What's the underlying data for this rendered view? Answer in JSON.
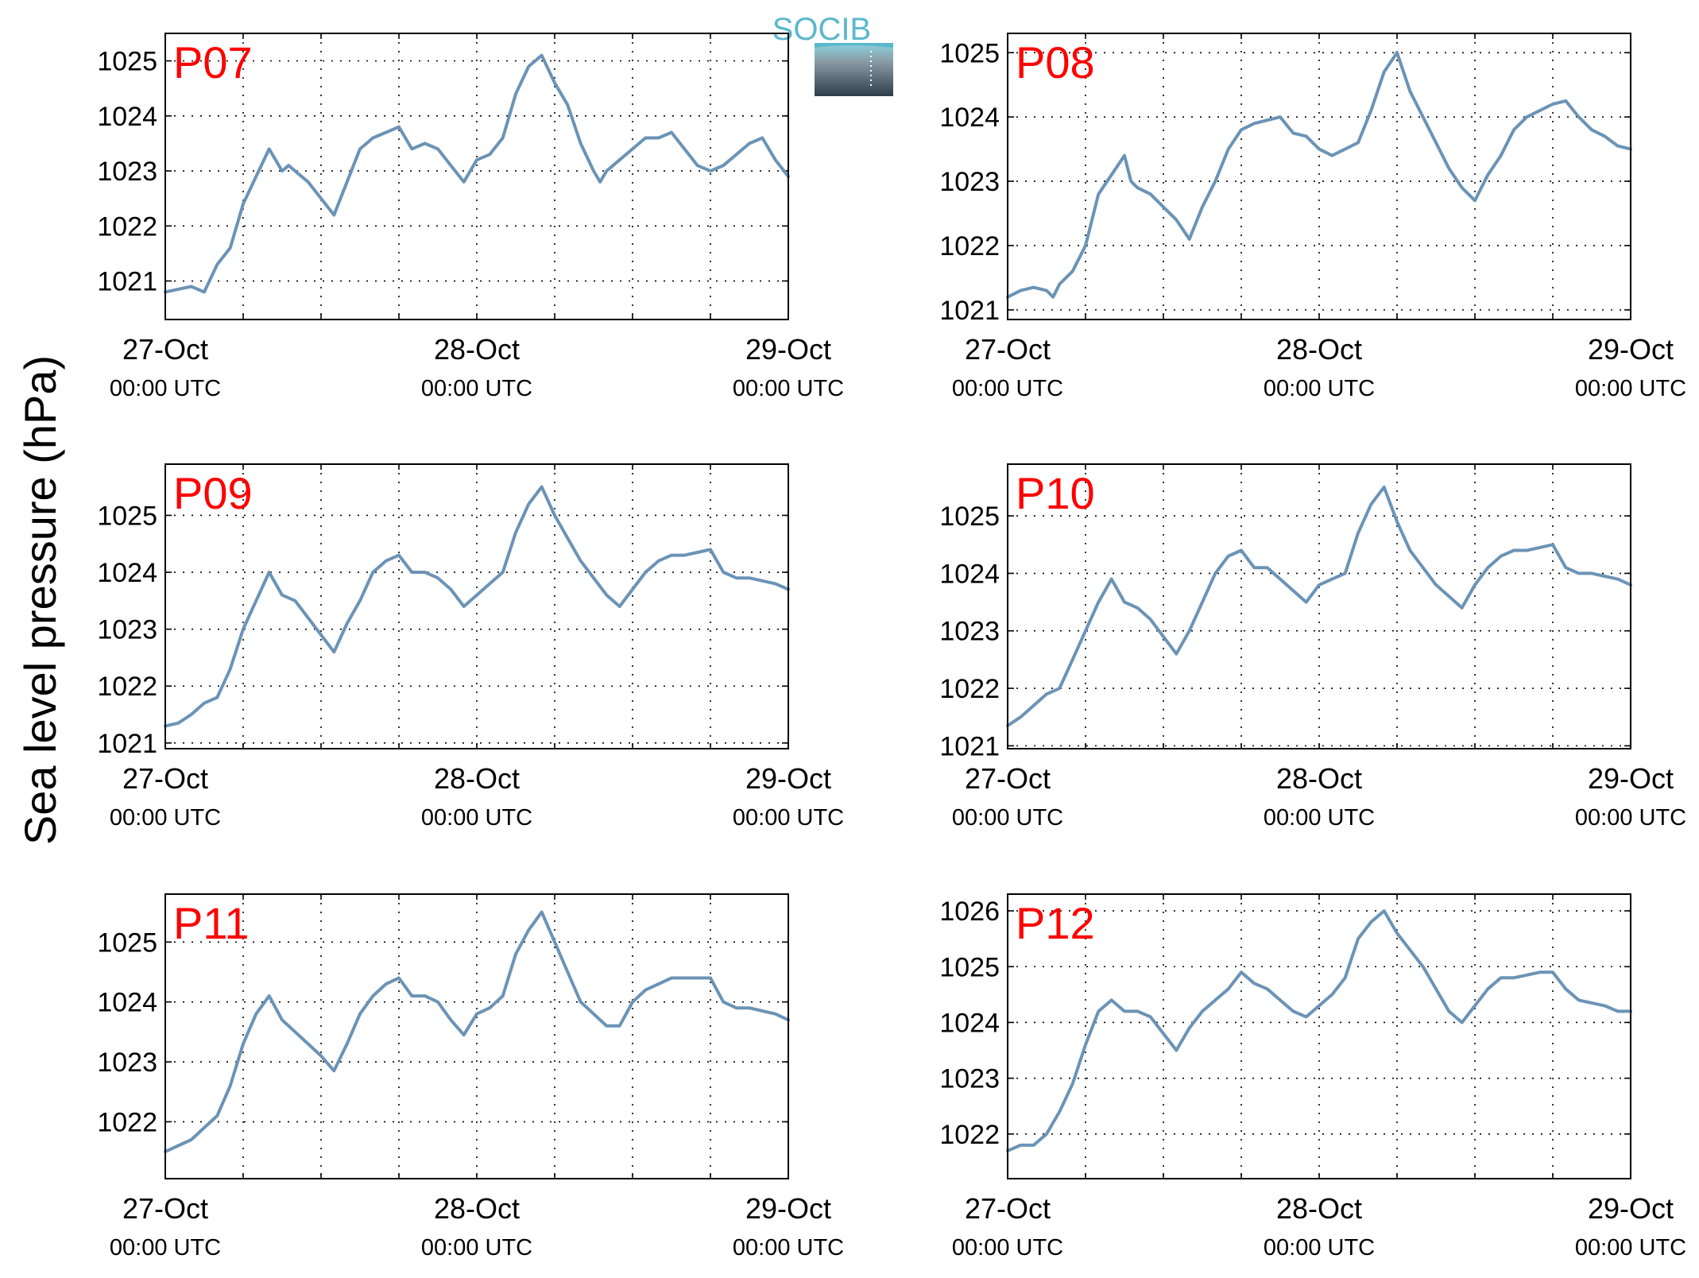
{
  "ylabel": "Sea level pressure (hPa)",
  "logo": {
    "text": "SOCIB"
  },
  "colors": {
    "series": "#6b93b6",
    "panel_label": "#ff0000",
    "logo_accent": "#5bb8cc",
    "logo_dark": "#2e3f4a"
  },
  "chart_data": [
    {
      "type": "line",
      "title": "P07",
      "xticks": [
        {
          "hour": 0,
          "date": "27-Oct",
          "time": "00:00 UTC"
        },
        {
          "hour": 24,
          "date": "28-Oct",
          "time": "00:00 UTC"
        },
        {
          "hour": 48,
          "date": "29-Oct",
          "time": "00:00 UTC"
        }
      ],
      "xlim": [
        0,
        48
      ],
      "ylim": [
        1020.3,
        1025.5
      ],
      "yticks": [
        1021,
        1022,
        1023,
        1024,
        1025
      ],
      "grid": true,
      "x": [
        0,
        1,
        2,
        3,
        4,
        5,
        6,
        7,
        8,
        9,
        9.5,
        10,
        11,
        12,
        13,
        14,
        15,
        15.5,
        16,
        17,
        18,
        19,
        20,
        21,
        22,
        23,
        24,
        25,
        26,
        27,
        28,
        29,
        30,
        31,
        32,
        33,
        33.5,
        34,
        35,
        36,
        37,
        38,
        39,
        40,
        41,
        42,
        43,
        44,
        45,
        46,
        47,
        48
      ],
      "y": [
        1020.8,
        1020.85,
        1020.9,
        1020.8,
        1021.3,
        1021.6,
        1022.4,
        1022.9,
        1023.4,
        1023.0,
        1023.1,
        1023.0,
        1022.8,
        1022.5,
        1022.2,
        1022.8,
        1023.4,
        1023.5,
        1023.6,
        1023.7,
        1023.8,
        1023.4,
        1023.5,
        1023.4,
        1023.1,
        1022.8,
        1023.2,
        1023.3,
        1023.6,
        1024.4,
        1024.9,
        1025.1,
        1024.6,
        1024.2,
        1023.5,
        1023.0,
        1022.8,
        1023.0,
        1023.2,
        1023.4,
        1023.6,
        1023.6,
        1023.7,
        1023.4,
        1023.1,
        1023.0,
        1023.1,
        1023.3,
        1023.5,
        1023.6,
        1023.2,
        1022.9
      ]
    },
    {
      "type": "line",
      "title": "P08",
      "xticks": [
        {
          "hour": 0,
          "date": "27-Oct",
          "time": "00:00 UTC"
        },
        {
          "hour": 24,
          "date": "28-Oct",
          "time": "00:00 UTC"
        },
        {
          "hour": 48,
          "date": "29-Oct",
          "time": "00:00 UTC"
        }
      ],
      "xlim": [
        0,
        48
      ],
      "ylim": [
        1020.85,
        1025.3
      ],
      "yticks": [
        1021,
        1022,
        1023,
        1024,
        1025
      ],
      "grid": true,
      "x": [
        0,
        1,
        2,
        3,
        3.5,
        4,
        5,
        6,
        7,
        8,
        9,
        9.5,
        10,
        11,
        12,
        13,
        14,
        15,
        16,
        17,
        18,
        19,
        21,
        22,
        23,
        24,
        25,
        26,
        27,
        28,
        29,
        30,
        31,
        32,
        33,
        34,
        35,
        36,
        37,
        38,
        39,
        40,
        41,
        42,
        43,
        44,
        45,
        46,
        47,
        48
      ],
      "y": [
        1021.2,
        1021.3,
        1021.35,
        1021.3,
        1021.2,
        1021.4,
        1021.6,
        1022.0,
        1022.8,
        1023.1,
        1023.4,
        1023.0,
        1022.9,
        1022.8,
        1022.6,
        1022.4,
        1022.1,
        1022.6,
        1023.0,
        1023.5,
        1023.8,
        1023.9,
        1024.0,
        1023.75,
        1023.7,
        1023.5,
        1023.4,
        1023.5,
        1023.6,
        1024.1,
        1024.7,
        1025.0,
        1024.4,
        1024.0,
        1023.6,
        1023.2,
        1022.9,
        1022.7,
        1023.1,
        1023.4,
        1023.8,
        1024.0,
        1024.1,
        1024.2,
        1024.25,
        1024.0,
        1023.8,
        1023.7,
        1023.55,
        1023.5
      ]
    },
    {
      "type": "line",
      "title": "P09",
      "xticks": [
        {
          "hour": 0,
          "date": "27-Oct",
          "time": "00:00 UTC"
        },
        {
          "hour": 24,
          "date": "28-Oct",
          "time": "00:00 UTC"
        },
        {
          "hour": 48,
          "date": "29-Oct",
          "time": "00:00 UTC"
        }
      ],
      "xlim": [
        0,
        48
      ],
      "ylim": [
        1020.9,
        1025.9
      ],
      "yticks": [
        1021,
        1022,
        1023,
        1024,
        1025
      ],
      "grid": true,
      "x": [
        0,
        1,
        2,
        3,
        4,
        5,
        6,
        7,
        8,
        9,
        10,
        11,
        12,
        13,
        14,
        15,
        16,
        17,
        18,
        19,
        20,
        21,
        22,
        23,
        24,
        25,
        26,
        27,
        28,
        29,
        30,
        31,
        32,
        33,
        34,
        35,
        36,
        37,
        38,
        39,
        40,
        41,
        42,
        43,
        44,
        45,
        46,
        47,
        48
      ],
      "y": [
        1021.3,
        1021.35,
        1021.5,
        1021.7,
        1021.8,
        1022.3,
        1023.0,
        1023.5,
        1024.0,
        1023.6,
        1023.5,
        1023.2,
        1022.9,
        1022.6,
        1023.1,
        1023.5,
        1024.0,
        1024.2,
        1024.3,
        1024.0,
        1024.0,
        1023.9,
        1023.7,
        1023.4,
        1023.6,
        1023.8,
        1024.0,
        1024.7,
        1025.2,
        1025.5,
        1025.0,
        1024.6,
        1024.2,
        1023.9,
        1023.6,
        1023.4,
        1023.7,
        1024.0,
        1024.2,
        1024.3,
        1024.3,
        1024.35,
        1024.4,
        1024.0,
        1023.9,
        1023.9,
        1023.85,
        1023.8,
        1023.7
      ]
    },
    {
      "type": "line",
      "title": "P10",
      "xticks": [
        {
          "hour": 0,
          "date": "27-Oct",
          "time": "00:00 UTC"
        },
        {
          "hour": 24,
          "date": "28-Oct",
          "time": "00:00 UTC"
        },
        {
          "hour": 48,
          "date": "29-Oct",
          "time": "00:00 UTC"
        }
      ],
      "xlim": [
        0,
        48
      ],
      "ylim": [
        1020.95,
        1025.9
      ],
      "yticks": [
        1021,
        1022,
        1023,
        1024,
        1025
      ],
      "grid": true,
      "x": [
        0,
        1,
        2,
        3,
        4,
        5,
        6,
        7,
        8,
        9,
        10,
        11,
        12,
        13,
        14,
        15,
        16,
        17,
        18,
        19,
        20,
        21,
        22,
        23,
        24,
        25,
        26,
        27,
        28,
        29,
        30,
        31,
        32,
        33,
        34,
        35,
        36,
        37,
        38,
        39,
        40,
        41,
        42,
        43,
        44,
        45,
        46,
        47,
        48
      ],
      "y": [
        1021.35,
        1021.5,
        1021.7,
        1021.9,
        1022.0,
        1022.5,
        1023.0,
        1023.5,
        1023.9,
        1023.5,
        1023.4,
        1023.2,
        1022.9,
        1022.6,
        1023.0,
        1023.5,
        1024.0,
        1024.3,
        1024.4,
        1024.1,
        1024.1,
        1023.9,
        1023.7,
        1023.5,
        1023.8,
        1023.9,
        1024.0,
        1024.7,
        1025.2,
        1025.5,
        1024.9,
        1024.4,
        1024.1,
        1023.8,
        1023.6,
        1023.4,
        1023.8,
        1024.1,
        1024.3,
        1024.4,
        1024.4,
        1024.45,
        1024.5,
        1024.1,
        1024.0,
        1024.0,
        1023.95,
        1023.9,
        1023.8
      ]
    },
    {
      "type": "line",
      "title": "P11",
      "xticks": [
        {
          "hour": 0,
          "date": "27-Oct",
          "time": "00:00 UTC"
        },
        {
          "hour": 24,
          "date": "28-Oct",
          "time": "00:00 UTC"
        },
        {
          "hour": 48,
          "date": "29-Oct",
          "time": "00:00 UTC"
        }
      ],
      "xlim": [
        0,
        48
      ],
      "ylim": [
        1021.05,
        1025.8
      ],
      "yticks": [
        1022,
        1023,
        1024,
        1025
      ],
      "grid": true,
      "x": [
        0,
        1,
        2,
        3,
        4,
        5,
        6,
        7,
        8,
        9,
        10,
        11,
        12,
        13,
        14,
        15,
        16,
        17,
        18,
        19,
        20,
        21,
        22,
        23,
        24,
        25,
        26,
        27,
        28,
        29,
        30,
        31,
        32,
        33,
        34,
        35,
        36,
        37,
        38,
        39,
        40,
        41,
        42,
        43,
        44,
        45,
        46,
        47,
        48
      ],
      "y": [
        1021.5,
        1021.6,
        1021.7,
        1021.9,
        1022.1,
        1022.6,
        1023.3,
        1023.8,
        1024.1,
        1023.7,
        1023.5,
        1023.3,
        1023.1,
        1022.85,
        1023.3,
        1023.8,
        1024.1,
        1024.3,
        1024.4,
        1024.1,
        1024.1,
        1024.0,
        1023.7,
        1023.45,
        1023.8,
        1023.9,
        1024.1,
        1024.8,
        1025.2,
        1025.5,
        1025.0,
        1024.5,
        1024.0,
        1023.8,
        1023.6,
        1023.6,
        1024.0,
        1024.2,
        1024.3,
        1024.4,
        1024.4,
        1024.4,
        1024.4,
        1024.0,
        1023.9,
        1023.9,
        1023.85,
        1023.8,
        1023.7
      ]
    },
    {
      "type": "line",
      "title": "P12",
      "xticks": [
        {
          "hour": 0,
          "date": "27-Oct",
          "time": "00:00 UTC"
        },
        {
          "hour": 24,
          "date": "28-Oct",
          "time": "00:00 UTC"
        },
        {
          "hour": 48,
          "date": "29-Oct",
          "time": "00:00 UTC"
        }
      ],
      "xlim": [
        0,
        48
      ],
      "ylim": [
        1021.2,
        1026.3
      ],
      "yticks": [
        1022,
        1023,
        1024,
        1025,
        1026
      ],
      "grid": true,
      "x": [
        0,
        1,
        2,
        3,
        4,
        5,
        6,
        7,
        8,
        9,
        10,
        11,
        12,
        13,
        14,
        15,
        16,
        17,
        18,
        19,
        20,
        21,
        22,
        23,
        24,
        25,
        26,
        27,
        28,
        29,
        30,
        31,
        32,
        33,
        34,
        35,
        36,
        37,
        38,
        39,
        40,
        41,
        42,
        43,
        44,
        45,
        46,
        47,
        48
      ],
      "y": [
        1021.7,
        1021.8,
        1021.8,
        1022.0,
        1022.4,
        1022.9,
        1023.6,
        1024.2,
        1024.4,
        1024.2,
        1024.2,
        1024.1,
        1023.8,
        1023.5,
        1023.9,
        1024.2,
        1024.4,
        1024.6,
        1024.9,
        1024.7,
        1024.6,
        1024.4,
        1024.2,
        1024.1,
        1024.3,
        1024.5,
        1024.8,
        1025.5,
        1025.8,
        1026.0,
        1025.6,
        1025.3,
        1025.0,
        1024.6,
        1024.2,
        1024.0,
        1024.3,
        1024.6,
        1024.8,
        1024.8,
        1024.85,
        1024.9,
        1024.9,
        1024.6,
        1024.4,
        1024.35,
        1024.3,
        1024.2,
        1024.2
      ]
    }
  ]
}
